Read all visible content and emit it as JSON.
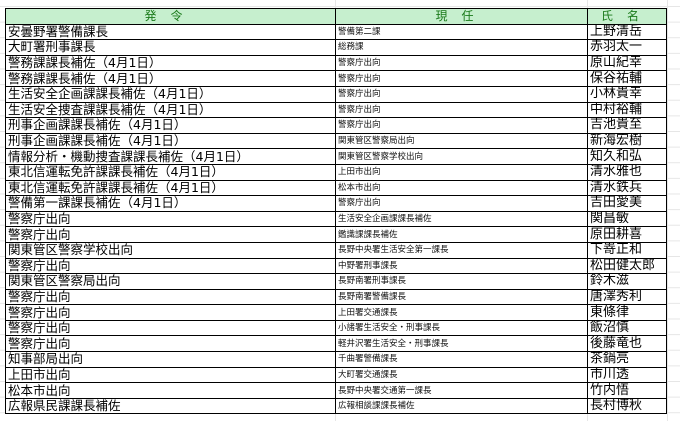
{
  "header": {
    "col1": "発令",
    "col2": "現任",
    "col3": "氏名"
  },
  "header_color": "#c6efce",
  "rows": [
    [
      "安曇野署警備課長",
      "警備第二課",
      "上野清岳"
    ],
    [
      "大町署刑事課長",
      "総務課",
      "赤羽太一"
    ],
    [
      "警務課課長補佐（4月1日）",
      "警察庁出向",
      "原山紀幸"
    ],
    [
      "警務課課長補佐（4月1日）",
      "警察庁出向",
      "保谷祐輔"
    ],
    [
      "生活安全企画課課長補佐（4月1日）",
      "警察庁出向",
      "小林貴幸"
    ],
    [
      "生活安全捜査課課長補佐（4月1日）",
      "警察庁出向",
      "中村裕輔"
    ],
    [
      "刑事企画課課長補佐（4月1日）",
      "警察庁出向",
      "吉池貴至"
    ],
    [
      "刑事企画課課長補佐（4月1日）",
      "関東管区警察局出向",
      "新海宏樹"
    ],
    [
      "情報分析・機動捜査課課長補佐（4月1日）",
      "関東管区警察学校出向",
      "知久和弘"
    ],
    [
      "東北信運転免許課課長補佐（4月1日）",
      "上田市出向",
      "清水雅也"
    ],
    [
      "東北信運転免許課課長補佐（4月1日）",
      "松本市出向",
      "清水鉄兵"
    ],
    [
      "警備第一課課長補佐（4月1日）",
      "警察庁出向",
      "吉田愛美"
    ],
    [
      "警察庁出向",
      "生活安全企画課課長補佐",
      "関昌敏"
    ],
    [
      "警察庁出向",
      "鑑識課課長補佐",
      "原田耕喜"
    ],
    [
      "関東管区警察学校出向",
      "長野中央署生活安全第一課長",
      "下嵜正和"
    ],
    [
      "警察庁出向",
      "中野署刑事課長",
      "松田健太郎"
    ],
    [
      "関東管区警察局出向",
      "長野南署刑事課長",
      "鈴木滋"
    ],
    [
      "警察庁出向",
      "長野南署警備課長",
      "唐澤秀利"
    ],
    [
      "警察庁出向",
      "上田署交通課長",
      "東條律"
    ],
    [
      "警察庁出向",
      "小諸署生活安全・刑事課長",
      "飯沼慎"
    ],
    [
      "警察庁出向",
      "軽井沢署生活安全・刑事課長",
      "後藤竜也"
    ],
    [
      "知事部局出向",
      "千曲署警備課長",
      "茶鍋亮"
    ],
    [
      "上田市出向",
      "大町署交通課長",
      "市川透"
    ],
    [
      "松本市出向",
      "長野中央署交通第一課長",
      "竹内悟"
    ],
    [
      "広報県民課課長補佐",
      "広報相談課課長補佐",
      "長村博秋"
    ]
  ]
}
